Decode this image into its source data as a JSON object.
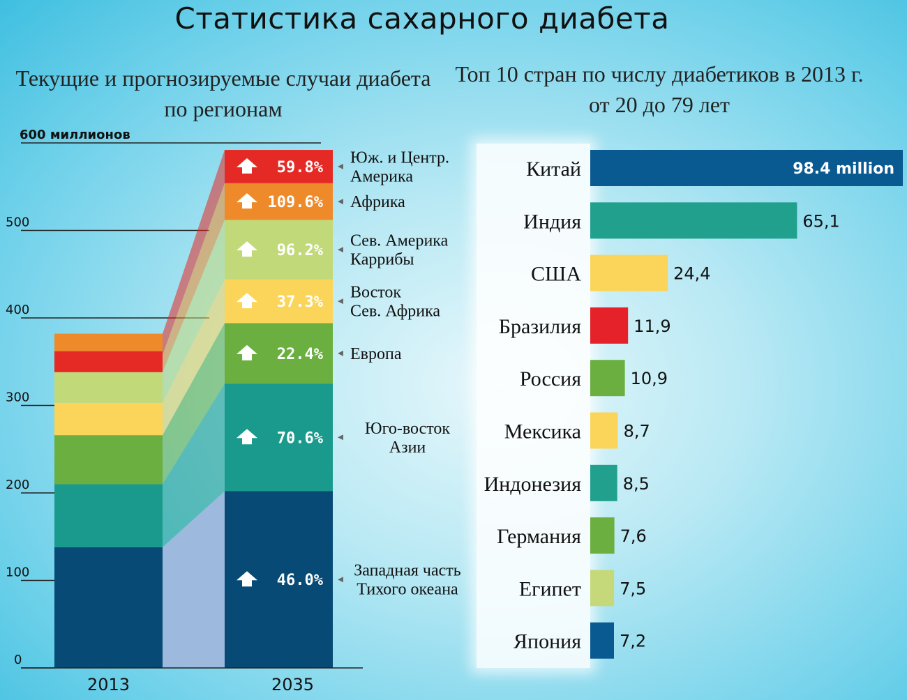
{
  "title": "Статистика сахарного диабета",
  "chart_data": [
    {
      "type": "bar",
      "stacked": true,
      "title": "Текущие и прогнозируемые случаи диабета по регионам",
      "unit_label": "600 миллионов",
      "categories": [
        "2013",
        "2035"
      ],
      "ylim": [
        0,
        600
      ],
      "yticks": [
        "0",
        "100",
        "200",
        "300",
        "400",
        "500",
        "600 миллионов"
      ],
      "series": [
        {
          "name": "Западная часть Тихого океана",
          "values": [
            138,
            202
          ],
          "growth": "46.0%",
          "color": "#064a75"
        },
        {
          "name": "Юго-восток Азии",
          "values": [
            72,
            123
          ],
          "growth": "70.6%",
          "color": "#1a9a8c"
        },
        {
          "name": "Европа",
          "values": [
            56,
            69
          ],
          "growth": "22.4%",
          "color": "#6aaf3f"
        },
        {
          "name": "Сев. Америка Каррибы",
          "values": [
            37,
            50
          ],
          "growth": "37.3%",
          "color": "#fbd55a"
        },
        {
          "name": "Восток Сев. Африка",
          "values": [
            35,
            68
          ],
          "growth": "96.2%",
          "color": "#c2d97a"
        },
        {
          "name": "Африка",
          "values": [
            20,
            42
          ],
          "growth": "109.6%",
          "color": "#ee8a2a"
        },
        {
          "name": "Юж. и Центр. Америка",
          "values": [
            24,
            38
          ],
          "growth": "59.8%",
          "color": "#e52a25"
        }
      ],
      "region_labels": [
        [
          "Юж. и Центр.",
          "Америка"
        ],
        [
          "Африка"
        ],
        [
          "Сев. Америка",
          "Каррибы"
        ],
        [
          "Восток",
          "Сев. Африка"
        ],
        [
          "Европа"
        ],
        [
          "Юго-восток",
          "Азии"
        ],
        [
          "Западная часть",
          "Тихого океана"
        ]
      ],
      "ordered_2013_colors": [
        "#064a75",
        "#1a9a8c",
        "#6aaf3f",
        "#fbd55a",
        "#c2d97a",
        "#e52a25",
        "#ee8a2a"
      ]
    },
    {
      "type": "bar",
      "orientation": "horizontal",
      "title": "Топ 10 стран по числу диабетиков в 2013 г. от 20 до 79 лет",
      "categories": [
        "Китай",
        "Индия",
        "США",
        "Бразилия",
        "Россия",
        "Мексика",
        "Индонезия",
        "Германия",
        "Египет",
        "Япония"
      ],
      "values": [
        98.4,
        65.1,
        24.4,
        11.9,
        10.9,
        8.7,
        8.5,
        7.6,
        7.5,
        7.2
      ],
      "value_labels": [
        "98.4 million",
        "65,1",
        "24,4",
        "11,9",
        "10,9",
        "8,7",
        "8,5",
        "7,6",
        "7,5",
        "7,2"
      ],
      "colors": [
        "#0a5a92",
        "#21a08e",
        "#fbd55a",
        "#e5212a",
        "#6aaf3f",
        "#fbd55a",
        "#21a08e",
        "#6aaf3f",
        "#c5d97a",
        "#0a5a92"
      ],
      "xlim": [
        0,
        98.4
      ]
    }
  ]
}
